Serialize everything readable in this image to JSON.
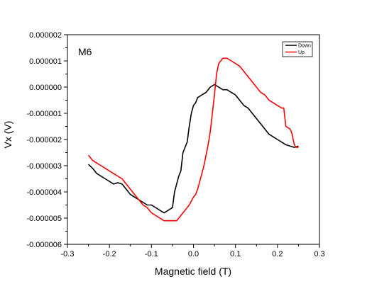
{
  "chart_data": {
    "type": "line",
    "xlabel": "Magnetic field (T)",
    "ylabel": "Vx (V)",
    "annotation": "M6",
    "xlim": [
      -0.3,
      0.3
    ],
    "ylim": [
      -6e-06,
      2e-06
    ],
    "x_ticks": [
      -0.3,
      -0.2,
      -0.1,
      0.0,
      0.1,
      0.2,
      0.3
    ],
    "x_tick_labels": [
      "-0.3",
      "-0.2",
      "-0.1",
      "0.0",
      "0.1",
      "0.2",
      "0.3"
    ],
    "y_ticks": [
      -6e-06,
      -5e-06,
      -4e-06,
      -3e-06,
      -2e-06,
      -1e-06,
      0.0,
      1e-06,
      2e-06
    ],
    "y_tick_labels": [
      "-0.000006",
      "-0.000005",
      "-0.000004",
      "-0.000003",
      "-0.000002",
      "-0.000001",
      "0.000000",
      "0.000001",
      "0.000002"
    ],
    "grid": false,
    "legend_position": "top-right",
    "series": [
      {
        "name": "Down",
        "color": "#000000",
        "points": [
          [
            -0.25,
            -2.95e-06
          ],
          [
            -0.24,
            -3.1e-06
          ],
          [
            -0.23,
            -3.3e-06
          ],
          [
            -0.22,
            -3.4e-06
          ],
          [
            -0.21,
            -3.5e-06
          ],
          [
            -0.2,
            -3.6e-06
          ],
          [
            -0.19,
            -3.7e-06
          ],
          [
            -0.18,
            -3.65e-06
          ],
          [
            -0.17,
            -3.7e-06
          ],
          [
            -0.16,
            -3.9e-06
          ],
          [
            -0.15,
            -4.1e-06
          ],
          [
            -0.14,
            -4.2e-06
          ],
          [
            -0.13,
            -4.3e-06
          ],
          [
            -0.12,
            -4.4e-06
          ],
          [
            -0.11,
            -4.5e-06
          ],
          [
            -0.1,
            -4.5e-06
          ],
          [
            -0.09,
            -4.6e-06
          ],
          [
            -0.08,
            -4.7e-06
          ],
          [
            -0.07,
            -4.8e-06
          ],
          [
            -0.06,
            -4.7e-06
          ],
          [
            -0.05,
            -4.6e-06
          ],
          [
            -0.045,
            -4e-06
          ],
          [
            -0.04,
            -3.7e-06
          ],
          [
            -0.035,
            -3.4e-06
          ],
          [
            -0.03,
            -3.2e-06
          ],
          [
            -0.025,
            -2.5e-06
          ],
          [
            -0.02,
            -2.3e-06
          ],
          [
            -0.015,
            -2.1e-06
          ],
          [
            -0.01,
            -1.5e-06
          ],
          [
            -0.005,
            -1e-06
          ],
          [
            0.0,
            -7e-07
          ],
          [
            0.005,
            -6e-07
          ],
          [
            0.01,
            -4e-07
          ],
          [
            0.02,
            -3e-07
          ],
          [
            0.03,
            -2e-07
          ],
          [
            0.04,
            0.0
          ],
          [
            0.05,
            1e-07
          ],
          [
            0.06,
            0.0
          ],
          [
            0.07,
            -1e-07
          ],
          [
            0.08,
            -1e-07
          ],
          [
            0.09,
            -2e-07
          ],
          [
            0.1,
            -3e-07
          ],
          [
            0.11,
            -5e-07
          ],
          [
            0.12,
            -7e-07
          ],
          [
            0.13,
            -8e-07
          ],
          [
            0.14,
            -1e-06
          ],
          [
            0.15,
            -1.2e-06
          ],
          [
            0.16,
            -1.4e-06
          ],
          [
            0.17,
            -1.6e-06
          ],
          [
            0.18,
            -1.8e-06
          ],
          [
            0.19,
            -1.9e-06
          ],
          [
            0.2,
            -2e-06
          ],
          [
            0.21,
            -2.1e-06
          ],
          [
            0.22,
            -2.2e-06
          ],
          [
            0.23,
            -2.25e-06
          ],
          [
            0.24,
            -2.3e-06
          ],
          [
            0.25,
            -2.25e-06
          ]
        ]
      },
      {
        "name": "Up",
        "color": "#ff0000",
        "points": [
          [
            -0.25,
            -2.6e-06
          ],
          [
            -0.24,
            -2.8e-06
          ],
          [
            -0.23,
            -2.9e-06
          ],
          [
            -0.22,
            -3e-06
          ],
          [
            -0.21,
            -3.1e-06
          ],
          [
            -0.2,
            -3.2e-06
          ],
          [
            -0.19,
            -3.3e-06
          ],
          [
            -0.18,
            -3.4e-06
          ],
          [
            -0.17,
            -3.5e-06
          ],
          [
            -0.16,
            -3.7e-06
          ],
          [
            -0.15,
            -3.9e-06
          ],
          [
            -0.14,
            -4.1e-06
          ],
          [
            -0.13,
            -4.3e-06
          ],
          [
            -0.12,
            -4.5e-06
          ],
          [
            -0.11,
            -4.6e-06
          ],
          [
            -0.1,
            -4.8e-06
          ],
          [
            -0.09,
            -4.9e-06
          ],
          [
            -0.08,
            -5e-06
          ],
          [
            -0.07,
            -5.1e-06
          ],
          [
            -0.06,
            -5.1e-06
          ],
          [
            -0.05,
            -5.1e-06
          ],
          [
            -0.04,
            -5.1e-06
          ],
          [
            -0.03,
            -4.9e-06
          ],
          [
            -0.02,
            -4.7e-06
          ],
          [
            -0.01,
            -4.5e-06
          ],
          [
            0.0,
            -4.2e-06
          ],
          [
            0.005,
            -4.1e-06
          ],
          [
            0.01,
            -3.9e-06
          ],
          [
            0.015,
            -3.6e-06
          ],
          [
            0.02,
            -3.3e-06
          ],
          [
            0.025,
            -3e-06
          ],
          [
            0.03,
            -2.6e-06
          ],
          [
            0.035,
            -2.2e-06
          ],
          [
            0.04,
            -1.7e-06
          ],
          [
            0.045,
            -1e-06
          ],
          [
            0.05,
            -3e-07
          ],
          [
            0.055,
            5e-07
          ],
          [
            0.06,
            9e-07
          ],
          [
            0.065,
            1e-06
          ],
          [
            0.07,
            1.1e-06
          ],
          [
            0.08,
            1.1e-06
          ],
          [
            0.09,
            1e-06
          ],
          [
            0.1,
            9e-07
          ],
          [
            0.11,
            8e-07
          ],
          [
            0.12,
            6e-07
          ],
          [
            0.13,
            4e-07
          ],
          [
            0.14,
            2e-07
          ],
          [
            0.15,
            0.0
          ],
          [
            0.16,
            -2e-07
          ],
          [
            0.17,
            -3e-07
          ],
          [
            0.18,
            -5e-07
          ],
          [
            0.19,
            -6e-07
          ],
          [
            0.2,
            -7e-07
          ],
          [
            0.21,
            -8e-07
          ],
          [
            0.215,
            -8e-07
          ],
          [
            0.22,
            -1.5e-06
          ],
          [
            0.23,
            -1.6e-06
          ],
          [
            0.235,
            -1.8e-06
          ],
          [
            0.24,
            -2.2e-06
          ],
          [
            0.245,
            -2.3e-06
          ],
          [
            0.25,
            -2.3e-06
          ]
        ]
      }
    ]
  }
}
